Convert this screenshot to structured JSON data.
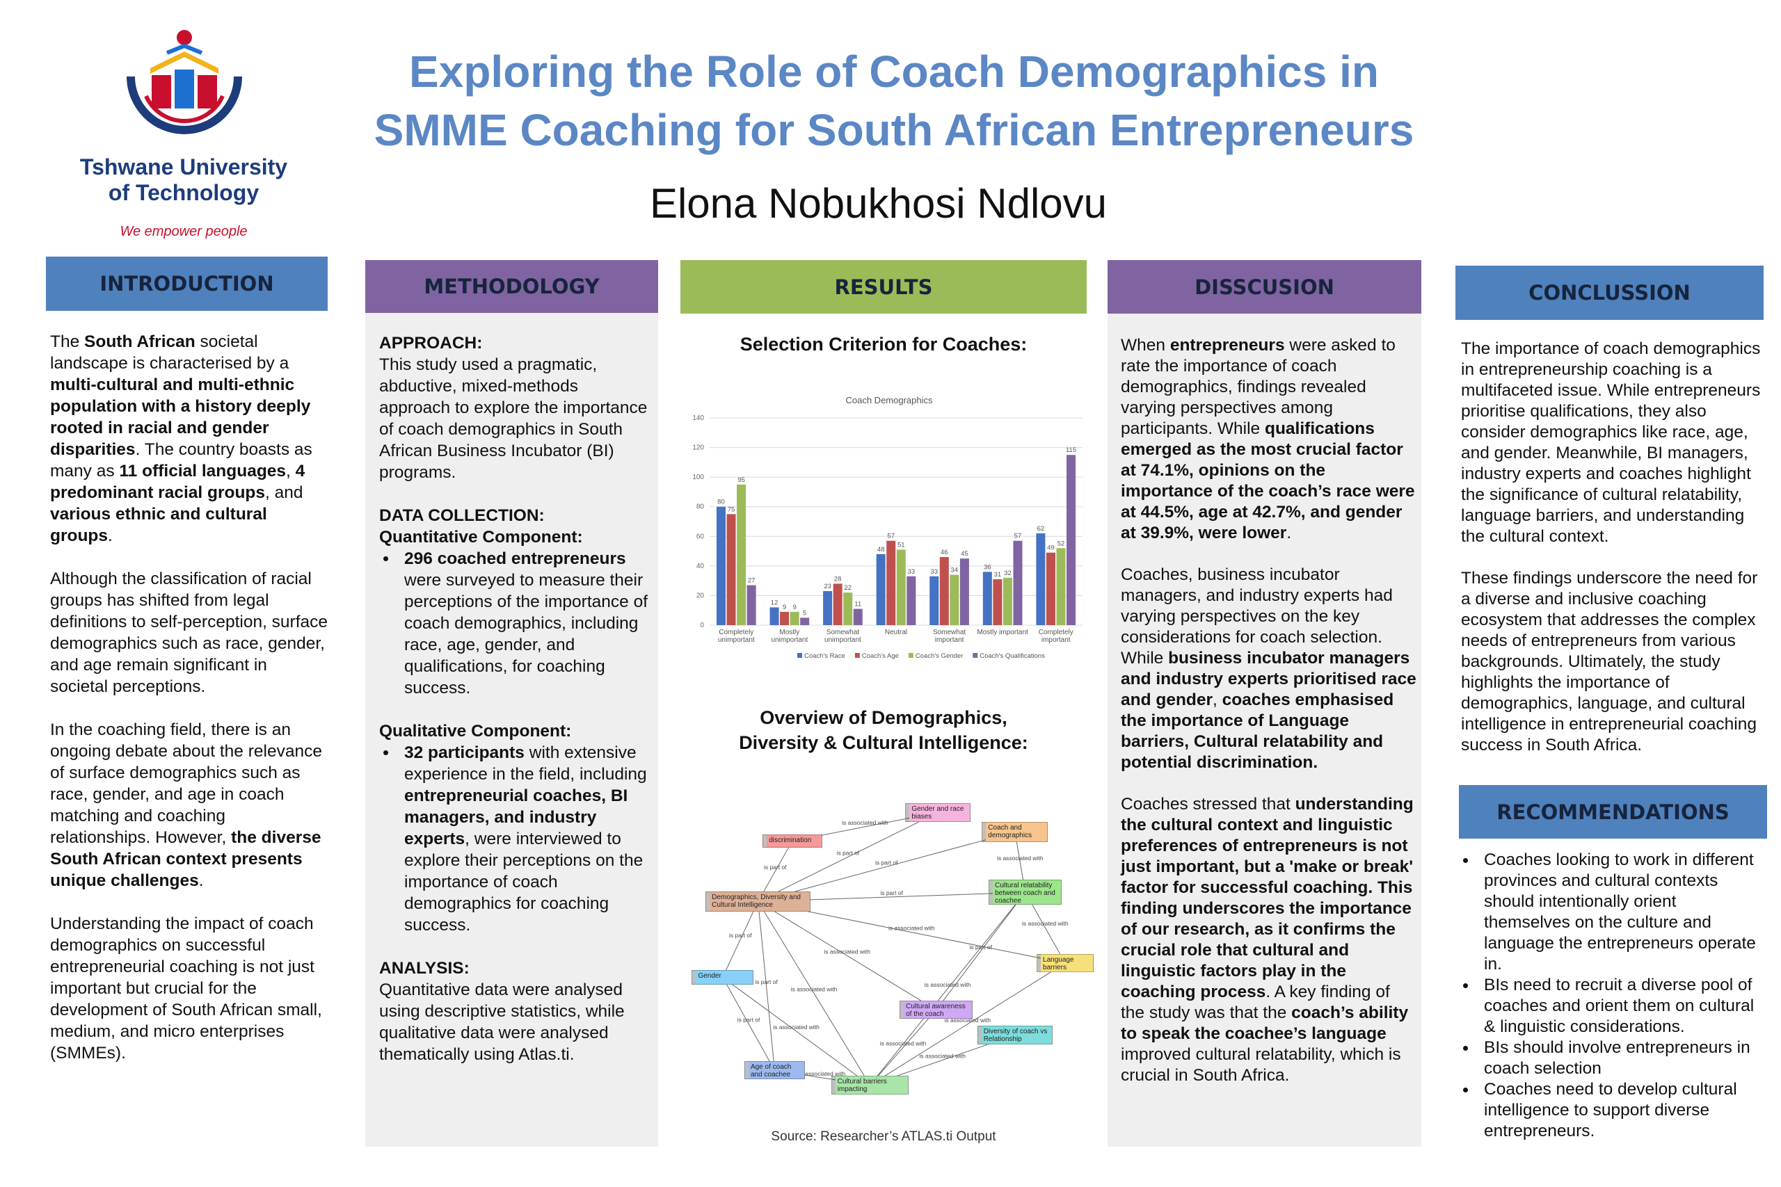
{
  "header": {
    "title_lines": [
      "Exploring the Role of Coach Demographics in",
      "SMME Coaching for South African Entrepreneurs"
    ],
    "author": "Elona Nobukhosi Ndlovu",
    "logo": {
      "name_lines": [
        "Tshwane University",
        "of Technology"
      ],
      "tagline": "We empower people"
    }
  },
  "introduction": {
    "heading": "INTRODUCTION",
    "paragraphs": [
      [
        "The ",
        {
          "text": "South African",
          "bold": true
        },
        " societal landscape is characterised by a ",
        {
          "text": "multi-cultural and multi-ethnic population with a history deeply rooted in racial and gender disparities",
          "bold": true
        },
        ". The country boasts as many as ",
        {
          "text": "11 official languages",
          "bold": true
        },
        ", ",
        {
          "text": "4 predominant racial groups",
          "bold": true
        },
        ", and ",
        {
          "text": "various ethnic and cultural groups",
          "bold": true
        },
        "."
      ],
      [
        "Although the classification of racial groups has shifted from legal definitions to self-perception, surface demographics such as race, gender, and age remain significant in societal perceptions."
      ],
      [
        "In the coaching field, there is an ongoing debate about the relevance of surface demographics such as race, gender, and age in coach matching and coaching relationships. However, ",
        {
          "text": "the diverse South African context presents unique challenges",
          "bold": true
        },
        "."
      ],
      [
        "Understanding the impact of coach demographics on successful entrepreneurial coaching is not just important but crucial for the development of South African small, medium, and micro enterprises (SMMEs)."
      ]
    ]
  },
  "methodology": {
    "heading": "METHODOLOGY",
    "sections": [
      [
        {
          "heading": "APPROACH:"
        },
        {
          "text": [
            "This study used a pragmatic, abductive,  mixed-methods approach to explore the importance of coach demographics in South African Business Incubator (BI) programs."
          ]
        }
      ],
      [
        {
          "heading": "DATA COLLECTION:"
        },
        {
          "heading": "Quantitative Component:"
        },
        {
          "bullet": [
            {
              "text": "296 coached entrepreneurs",
              "bold": true
            },
            " were surveyed to measure their perceptions of the importance of coach demographics, including race, age, gender, and qualifications, for coaching success."
          ]
        }
      ],
      [
        {
          "heading": "Qualitative Component:"
        },
        {
          "bullet": [
            {
              "text": "32 participants",
              "bold": true
            },
            " with extensive experience in the field, including ",
            {
              "text": "entrepreneurial coaches, BI managers, and industry experts",
              "bold": true
            },
            ", were interviewed to explore their perceptions on the importance of coach demographics for coaching success."
          ]
        }
      ],
      [
        {
          "heading": "ANALYSIS:"
        },
        {
          "text": [
            "Quantitative data were analysed using descriptive statistics, while qualitative data were analysed thematically using Atlas.ti."
          ]
        }
      ]
    ]
  },
  "results": {
    "heading": "RESULTS",
    "chart_heading": "Selection Criterion for Coaches:",
    "network_heading": [
      "Overview of Demographics,",
      "Diversity & Cultural Intelligence:"
    ],
    "network": {
      "nodes": [
        "Gender and race biases",
        "discrimination",
        "Coach and demographics",
        "Demographics, Diversity and Cultural Intelligence",
        "Cultural relatability between coach and coachee",
        "Language barriers",
        "Gender",
        "Cultural awareness of the coach",
        "Diversity of coach vs Relationship",
        "Age of coach and coachee",
        "Cultural barriers impacting entrepreneurs"
      ],
      "edge_labels": [
        "is associated with",
        "is part of",
        "is part of",
        "is part of",
        "is associated with",
        "is part of",
        "is associated with",
        "is associated with",
        "is part of",
        "is part of",
        "is associated with",
        "is part of",
        "is associated with",
        "is associated with",
        "is associated with",
        "is associated with",
        "is associated with",
        "is associated with",
        "is part of",
        "is associated with"
      ]
    },
    "source": "Source: Researcher’s ATLAS.ti Output"
  },
  "discussion": {
    "heading": "DISSCUSION",
    "paragraphs": [
      [
        "When ",
        {
          "text": "entrepreneurs",
          "bold": true
        },
        " were asked to rate the importance of coach demographics, findings revealed varying perspectives among participants. While ",
        {
          "text": "qualifications emerged as the most crucial factor at 74.1%, opinions on the importance of the coach’s race were at 44.5%, age at 42.7%, and gender at 39.9%, were lower",
          "bold": true
        },
        "."
      ],
      [
        "Coaches, business incubator managers, and industry experts had varying perspectives on the key considerations for coach selection. While ",
        {
          "text": "business incubator managers and industry experts prioritised race and gender",
          "bold": true
        },
        ", ",
        {
          "text": "coaches emphasised the importance of Language barriers, Cultural relatability and potential discrimination.",
          "bold": true
        }
      ],
      [
        "Coaches stressed that ",
        {
          "text": "understanding the cultural context and linguistic preferences of entrepreneurs is not just important, but a 'make or break' factor for successful coaching. This finding underscores the importance of our research, as it confirms the crucial role that cultural and linguistic factors play in the coaching process",
          "bold": true
        },
        ". A key finding of the study was that the ",
        {
          "text": "coach’s ability to speak the coachee’s language",
          "bold": true
        },
        " improved cultural relatability, which is crucial in South Africa."
      ]
    ]
  },
  "conclusion": {
    "heading": "CONCLUSSION",
    "paragraphs": [
      [
        "The importance of coach demographics in entrepreneurship coaching is a multifaceted issue. While entrepreneurs prioritise qualifications, they also consider demographics like race, age, and gender. Meanwhile, BI managers, industry experts and coaches highlight the significance of cultural relatability, language barriers, and understanding the cultural context."
      ],
      [
        "These findings underscore the need for a diverse and inclusive coaching ecosystem that addresses the complex needs of entrepreneurs from various backgrounds. Ultimately, the study highlights the importance of demographics, language, and cultural intelligence in entrepreneurial coaching success in South Africa."
      ]
    ]
  },
  "recommendations": {
    "heading": "RECOMMENDATIONS",
    "bullets": [
      [
        "Coaches looking to work in different provinces and cultural contexts should intentionally orient themselves on the culture and language the entrepreneurs operate in."
      ],
      [
        "BIs need to recruit a diverse pool of coaches and orient them on cultural & linguistic considerations."
      ],
      [
        "BIs should involve entrepreneurs in coach selection"
      ],
      [
        "Coaches need to develop cultural intelligence to support diverse entrepreneurs."
      ]
    ]
  },
  "chart_data": {
    "type": "bar",
    "title": "Coach Demographics",
    "categories": [
      "Completely unimportant",
      "Mostly unimportant",
      "Somewhat unimportant",
      "Neutral",
      "Somewhat important",
      "Mostly important",
      "Completely important"
    ],
    "series": [
      {
        "name": "Coach's Race",
        "color": "#4472c4",
        "values": [
          80,
          12,
          23,
          48,
          33,
          36,
          62
        ]
      },
      {
        "name": "Coach's Age",
        "color": "#c0504d",
        "values": [
          75,
          9,
          28,
          57,
          46,
          31,
          49
        ]
      },
      {
        "name": "Coach's Gender",
        "color": "#9bbb59",
        "values": [
          95,
          9,
          22,
          51,
          34,
          32,
          52
        ]
      },
      {
        "name": "Coach's Qualifications",
        "color": "#8064a2",
        "values": [
          27,
          5,
          11,
          33,
          45,
          57,
          115
        ]
      }
    ],
    "ylim": [
      0,
      140
    ],
    "yticks": [
      0,
      20,
      40,
      60,
      80,
      100,
      120,
      140
    ],
    "grid": true,
    "legend": "bottom"
  }
}
